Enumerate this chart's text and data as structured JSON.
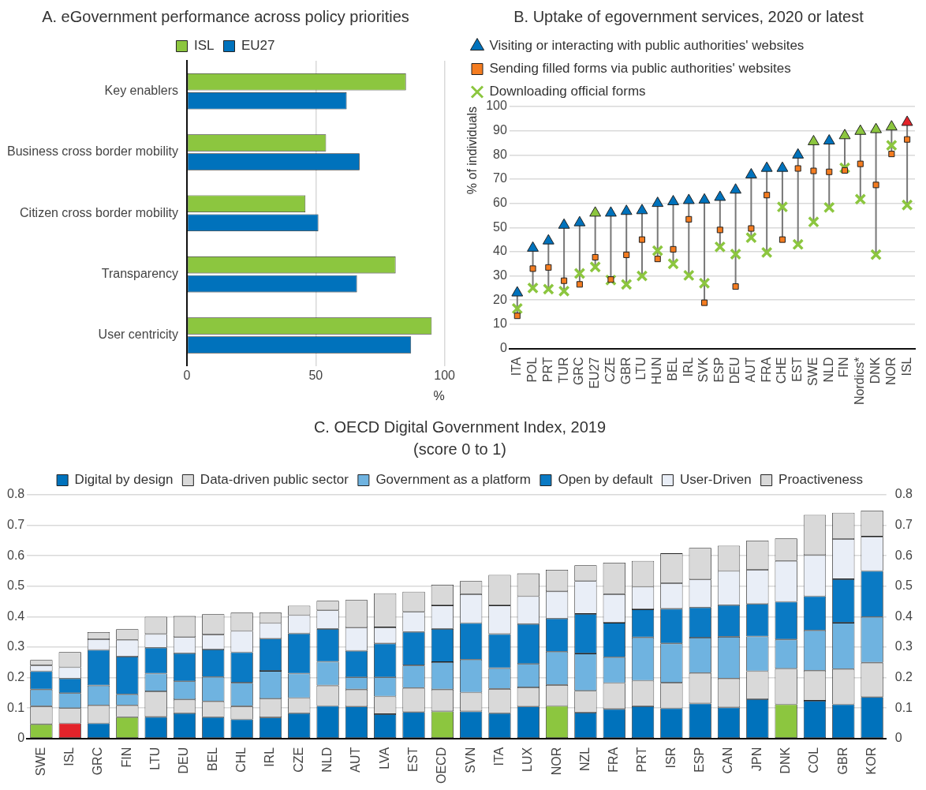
{
  "chart_data": [
    {
      "type": "bar",
      "orientation": "horizontal",
      "title": "A. eGovernment performance across policy priorities",
      "xlabel": "%",
      "categories": [
        "Key enablers",
        "Business cross border mobility",
        "Citizen cross border mobility",
        "Transparency",
        "User centricity"
      ],
      "series": [
        {
          "name": "ISL",
          "color": "#8cc63f",
          "values": [
            85,
            54,
            46,
            81,
            95
          ]
        },
        {
          "name": "EU27",
          "color": "#0072bc",
          "values": [
            62,
            67,
            51,
            66,
            87
          ]
        }
      ],
      "xlim": [
        0,
        100
      ],
      "xticks": [
        0,
        50,
        100
      ],
      "grid": "x",
      "legend": "top"
    },
    {
      "type": "scatter",
      "title": "B. Uptake of egovernment services, 2020 or latest",
      "ylabel": "% of individuals",
      "categories": [
        "ITA",
        "POL",
        "PRT",
        "TUR",
        "GRC",
        "EU27",
        "CZE",
        "GBR",
        "LTU",
        "HUN",
        "BEL",
        "IRL",
        "SVK",
        "ESP",
        "DEU",
        "AUT",
        "FRA",
        "CHE",
        "EST",
        "SWE",
        "NLD",
        "FIN",
        "Nordics*",
        "DNK",
        "NOR",
        "ISL"
      ],
      "series": [
        {
          "name": "Visiting or interacting with public authorities' websites",
          "marker": "triangle",
          "color": "#0072bc",
          "colors": [
            "#0072bc",
            "#0072bc",
            "#0072bc",
            "#0072bc",
            "#0072bc",
            "#8cc63f",
            "#0072bc",
            "#0072bc",
            "#0072bc",
            "#0072bc",
            "#0072bc",
            "#0072bc",
            "#0072bc",
            "#0072bc",
            "#0072bc",
            "#0072bc",
            "#0072bc",
            "#0072bc",
            "#0072bc",
            "#8cc63f",
            "#0072bc",
            "#8cc63f",
            "#8cc63f",
            "#8cc63f",
            "#8cc63f",
            "#e3232a"
          ],
          "values": [
            23,
            41.5,
            44.5,
            51,
            52,
            56,
            56,
            56.7,
            57,
            60,
            60.7,
            61.2,
            61.4,
            62.5,
            65.5,
            71.8,
            74.5,
            74.5,
            80,
            85.5,
            85.8,
            88,
            89.8,
            90.5,
            91.6,
            93.5
          ]
        },
        {
          "name": "Sending filled forms via public authorities' websites",
          "marker": "square",
          "color": "#f47c20",
          "values": [
            13.5,
            33,
            33.5,
            28,
            26.5,
            37.7,
            28.5,
            38.7,
            45,
            37,
            41,
            53.4,
            18.9,
            49,
            25.6,
            49.6,
            63.4,
            45,
            74.4,
            73.4,
            73,
            73.6,
            76.3,
            67.6,
            80.4,
            86.4
          ]
        },
        {
          "name": "Downloading official forms",
          "marker": "cross",
          "color": "#8cc63f",
          "values": [
            16.5,
            25,
            24.5,
            23.7,
            31,
            33.7,
            28.3,
            26.5,
            30,
            40.4,
            35,
            30.2,
            27,
            42,
            39,
            45.8,
            39.7,
            58.5,
            43,
            52.3,
            58.3,
            74.7,
            61.7,
            38.8,
            84,
            59.3
          ]
        }
      ],
      "ylim": [
        0,
        100
      ],
      "yticks": [
        0,
        10,
        20,
        30,
        40,
        50,
        60,
        70,
        80,
        90,
        100
      ],
      "grid": "y",
      "legend": "top"
    },
    {
      "type": "bar",
      "stacked": true,
      "title": "C. OECD Digital Government Index, 2019",
      "subtitle": "(score 0 to 1)",
      "categories": [
        "SWE",
        "ISL",
        "GRC",
        "FIN",
        "LTU",
        "DEU",
        "BEL",
        "CHL",
        "IRL",
        "CZE",
        "NLD",
        "AUT",
        "LVA",
        "EST",
        "OECD",
        "SVN",
        "ITA",
        "LUX",
        "NOR",
        "NZL",
        "FRA",
        "PRT",
        "ISR",
        "ESP",
        "CAN",
        "JPN",
        "DNK",
        "COL",
        "GBR",
        "KOR"
      ],
      "series": [
        {
          "name": "Digital by design",
          "color": "#0072bc",
          "colors": [
            "#8cc63f",
            "#e3232a",
            "#0072bc",
            "#8cc63f",
            "#0072bc",
            "#0072bc",
            "#0072bc",
            "#0072bc",
            "#0072bc",
            "#0072bc",
            "#0072bc",
            "#0072bc",
            "#0072bc",
            "#0072bc",
            "#8cc63f",
            "#0072bc",
            "#0072bc",
            "#0072bc",
            "#8cc63f",
            "#0072bc",
            "#0072bc",
            "#0072bc",
            "#0072bc",
            "#0072bc",
            "#0072bc",
            "#0072bc",
            "#8cc63f",
            "#0072bc",
            "#0072bc",
            "#0072bc"
          ],
          "values": [
            0.047,
            0.05,
            0.05,
            0.07,
            0.071,
            0.083,
            0.07,
            0.063,
            0.069,
            0.083,
            0.107,
            0.105,
            0.08,
            0.087,
            0.089,
            0.089,
            0.083,
            0.105,
            0.107,
            0.085,
            0.097,
            0.106,
            0.099,
            0.115,
            0.102,
            0.129,
            0.112,
            0.124,
            0.112,
            0.136
          ]
        },
        {
          "name": "Data-driven public sector",
          "color": "#d9d9d9",
          "values": [
            0.059,
            0.05,
            0.059,
            0.039,
            0.084,
            0.045,
            0.052,
            0.043,
            0.062,
            0.05,
            0.067,
            0.056,
            0.058,
            0.079,
            0.072,
            0.062,
            0.08,
            0.063,
            0.069,
            0.072,
            0.085,
            0.084,
            0.084,
            0.1,
            0.095,
            0.092,
            0.117,
            0.099,
            0.116,
            0.113
          ]
        },
        {
          "name": "Government as a platform",
          "color": "#6fb3e0",
          "values": [
            0.055,
            0.049,
            0.065,
            0.036,
            0.058,
            0.06,
            0.08,
            0.077,
            0.091,
            0.08,
            0.078,
            0.04,
            0.063,
            0.074,
            0.09,
            0.108,
            0.068,
            0.077,
            0.109,
            0.122,
            0.085,
            0.142,
            0.129,
            0.116,
            0.137,
            0.114,
            0.096,
            0.132,
            0.152,
            0.15
          ]
        },
        {
          "name": "Open by default",
          "color": "#0a7ac4",
          "values": [
            0.06,
            0.048,
            0.117,
            0.124,
            0.085,
            0.092,
            0.09,
            0.1,
            0.106,
            0.132,
            0.108,
            0.087,
            0.111,
            0.11,
            0.109,
            0.12,
            0.112,
            0.131,
            0.109,
            0.13,
            0.113,
            0.092,
            0.114,
            0.099,
            0.104,
            0.107,
            0.124,
            0.112,
            0.143,
            0.151
          ]
        },
        {
          "name": "User-Driven",
          "color": "#e9eef7",
          "values": [
            0.019,
            0.037,
            0.035,
            0.055,
            0.045,
            0.053,
            0.049,
            0.07,
            0.051,
            0.06,
            0.061,
            0.076,
            0.053,
            0.066,
            0.077,
            0.095,
            0.094,
            0.091,
            0.089,
            0.108,
            0.094,
            0.074,
            0.084,
            0.092,
            0.112,
            0.112,
            0.134,
            0.135,
            0.132,
            0.113
          ]
        },
        {
          "name": "Proactiveness",
          "color": "#d9d9d9",
          "values": [
            0.018,
            0.05,
            0.023,
            0.035,
            0.057,
            0.069,
            0.067,
            0.06,
            0.034,
            0.031,
            0.031,
            0.091,
            0.112,
            0.066,
            0.068,
            0.043,
            0.1,
            0.075,
            0.071,
            0.052,
            0.103,
            0.085,
            0.098,
            0.104,
            0.083,
            0.096,
            0.074,
            0.132,
            0.086,
            0.085
          ]
        }
      ],
      "ylim": [
        0,
        0.8
      ],
      "yticks": [
        0,
        0.1,
        0.2,
        0.3,
        0.4,
        0.5,
        0.6,
        0.7,
        0.8
      ],
      "y2lim": [
        0,
        0.8
      ],
      "y2ticks": [
        0,
        0.1,
        0.2,
        0.3,
        0.4,
        0.5,
        0.6,
        0.7,
        0.8
      ],
      "grid": "y",
      "legend": "top"
    }
  ]
}
